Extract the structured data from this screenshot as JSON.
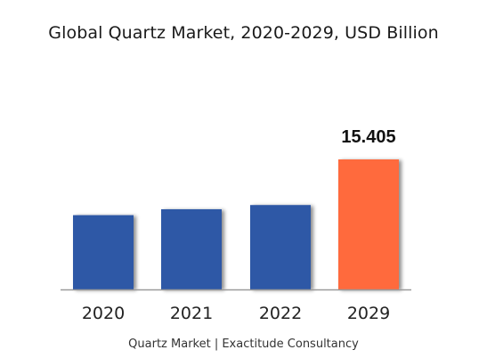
{
  "chart_data": {
    "type": "bar",
    "title": "Global Quartz Market, 2020-2029, USD Billion",
    "caption": "Quartz Market | Exactitude Consultancy",
    "categories": [
      "2020",
      "2021",
      "2022",
      "2029"
    ],
    "values": [
      8.8,
      9.5,
      10.0,
      15.405
    ],
    "data_labels": [
      "",
      "",
      "",
      "15.405"
    ],
    "bar_colors": [
      "#2e58a6",
      "#2e58a6",
      "#2e58a6",
      "#ff6a3d"
    ],
    "xlabel": "",
    "ylabel": "USD Billion",
    "ylim": [
      0,
      15.405
    ],
    "grid": false,
    "legend": "none"
  },
  "colors": {
    "axis": "#9a9a9a",
    "bar_shadow": "#bdbdbd"
  }
}
